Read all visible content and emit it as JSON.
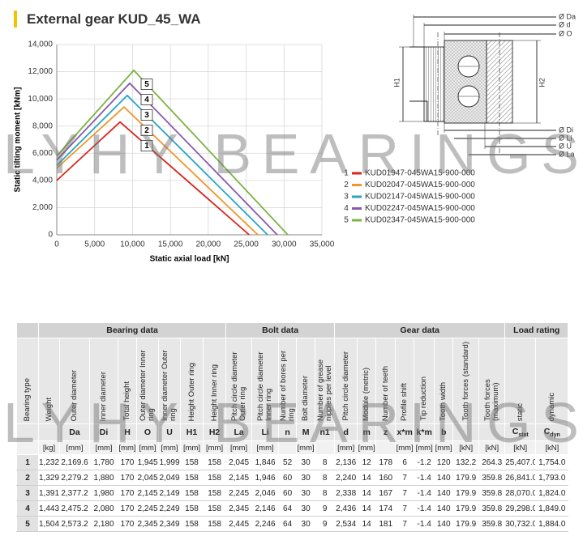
{
  "header": {
    "title": "External gear KUD_45_WA"
  },
  "watermark": "LYHY BEARINGS",
  "chart_data": {
    "type": "line",
    "xlabel": "Static axial load [kN]",
    "ylabel": "Static tilting moment [kNm]",
    "xlim": [
      0,
      35000
    ],
    "ylim": [
      0,
      14000
    ],
    "xticks": [
      0,
      {
        "value": 5000,
        "label": "5,000"
      },
      {
        "value": 10000,
        "label": "10,000"
      },
      {
        "value": 15000,
        "label": "15,000"
      },
      {
        "value": 20000,
        "label": "20,000"
      },
      {
        "value": 25000,
        "label": "25,000"
      },
      {
        "value": 30000,
        "label": "30,000"
      },
      {
        "value": 35000,
        "label": "35,000"
      }
    ],
    "yticks": [
      0,
      {
        "value": 2000,
        "label": "2,000"
      },
      {
        "value": 4000,
        "label": "4,000"
      },
      {
        "value": 6000,
        "label": "6,000"
      },
      {
        "value": 8000,
        "label": "8,000"
      },
      {
        "value": 10000,
        "label": "10,000"
      },
      {
        "value": 12000,
        "label": "12,000"
      },
      {
        "value": 14000,
        "label": "14,000"
      }
    ],
    "grid": true,
    "series": [
      {
        "number": "1",
        "name": "KUD01947-045WA15-900-000",
        "color": "#d7261e",
        "x": [
          0,
          8350,
          25400
        ],
        "values": [
          4000,
          8300,
          0
        ]
      },
      {
        "number": "2",
        "name": "KUD02047-045WA15-900-000",
        "color": "#f0962a",
        "x": [
          0,
          8880,
          26540
        ],
        "values": [
          4900,
          9400,
          0
        ]
      },
      {
        "number": "3",
        "name": "KUD02147-045WA15-900-000",
        "color": "#2aa6c0",
        "x": [
          0,
          9300,
          27830
        ],
        "values": [
          5100,
          10250,
          0
        ]
      },
      {
        "number": "4",
        "name": "KUD02247-045WA15-900-000",
        "color": "#8a5aa8",
        "x": [
          0,
          9630,
          29100
        ],
        "values": [
          5500,
          11150,
          0
        ]
      },
      {
        "number": "5",
        "name": "KUD02347-045WA15-900-000",
        "color": "#7cb342",
        "x": [
          0,
          10170,
          30500
        ],
        "values": [
          5800,
          12100,
          0
        ]
      }
    ]
  },
  "diagram": {
    "labels": [
      "Ø Da",
      "Ø d",
      "Ø O",
      "H1",
      "H2",
      "Ø Di",
      "Ø Li",
      "Ø U",
      "Ø La"
    ]
  },
  "table": {
    "groups": [
      {
        "label": null,
        "columns": [
          {
            "header": "Bearing type",
            "symbol": null,
            "unit": null
          }
        ]
      },
      {
        "label": "Bearing data",
        "columns": [
          {
            "header": "Weight",
            "symbol": null,
            "unit": "[kg]"
          },
          {
            "header": "Outer diameter",
            "symbol": "Da",
            "unit": "[mm]"
          },
          {
            "header": "Inner diameter",
            "symbol": "Di",
            "unit": "[mm]"
          },
          {
            "header": "Total height",
            "symbol": "H",
            "unit": "[mm]"
          },
          {
            "header": "Outer diameter Inner ring",
            "symbol": "O",
            "unit": "[mm]"
          },
          {
            "header": "Inner diameter Outer ring",
            "symbol": "U",
            "unit": "[mm]"
          },
          {
            "header": "Height Outer ring",
            "symbol": "H1",
            "unit": "[mm]"
          },
          {
            "header": "Height Inner ring",
            "symbol": "H2",
            "unit": "[mm]"
          }
        ]
      },
      {
        "label": "Bolt data",
        "columns": [
          {
            "header": "Pitch circle diameter Outer ring",
            "symbol": "La",
            "unit": "[mm]"
          },
          {
            "header": "Pitch circle diameter Inner ring",
            "symbol": "Li",
            "unit": "[mm]"
          },
          {
            "header": "Number of bores per ring",
            "symbol": "n",
            "unit": null
          },
          {
            "header": "Bolt diameter",
            "symbol": "M",
            "unit": "[mm]"
          },
          {
            "header": "Number of grease nipples per level",
            "symbol": "n1",
            "unit": null
          }
        ]
      },
      {
        "label": "Gear data",
        "columns": [
          {
            "header": "Pitch circle diameter",
            "symbol": "d",
            "unit": "[mm]"
          },
          {
            "header": "Module (metric)",
            "symbol": "m",
            "unit": "[mm]"
          },
          {
            "header": "Number of teeth",
            "symbol": "z",
            "unit": null
          },
          {
            "header": "Profile shift",
            "symbol": "x*m",
            "unit": "[mm]"
          },
          {
            "header": "Tip reduction",
            "symbol": "k*m",
            "unit": "[mm]"
          },
          {
            "header": "Tooth width",
            "symbol": "b",
            "unit": "[mm]"
          },
          {
            "header": "Tooth forces (standard)",
            "symbol": null,
            "unit": "[kN]"
          },
          {
            "header": "Tooth forces (maximum)",
            "symbol": null,
            "unit": "[kN]"
          }
        ]
      },
      {
        "label": "Load rating",
        "columns": [
          {
            "header": "static",
            "symbol": {
              "text": "C",
              "sub": "stat"
            },
            "unit": "[kN]"
          },
          {
            "header": "dynamic",
            "symbol": {
              "text": "C",
              "sub": "dyn"
            },
            "unit": "[kN]"
          }
        ]
      }
    ],
    "rows": [
      [
        "1",
        "1,232",
        "2,169.6",
        "1,780",
        "170",
        "1,945",
        "1,999",
        "158",
        "158",
        "2,045",
        "1,846",
        "52",
        "30",
        "8",
        "2,136",
        "12",
        "178",
        "6",
        "-1.2",
        "120",
        "132.2",
        "264.3",
        "25,407.0",
        "1,754.0"
      ],
      [
        "2",
        "1,329",
        "2,279.2",
        "1,880",
        "170",
        "2,045",
        "2,049",
        "158",
        "158",
        "2,145",
        "1,946",
        "60",
        "30",
        "8",
        "2,240",
        "14",
        "160",
        "7",
        "-1.4",
        "140",
        "179.9",
        "359.8",
        "26,841.0",
        "1,793.0"
      ],
      [
        "3",
        "1,391",
        "2,377.2",
        "1,980",
        "170",
        "2,145",
        "2,149",
        "158",
        "158",
        "2,245",
        "2,046",
        "60",
        "30",
        "8",
        "2,338",
        "14",
        "167",
        "7",
        "-1.4",
        "140",
        "179.9",
        "359.8",
        "28,070.0",
        "1,824.0"
      ],
      [
        "4",
        "1,443",
        "2,475.2",
        "2,080",
        "170",
        "2,245",
        "2,249",
        "158",
        "158",
        "2,345",
        "2,146",
        "64",
        "30",
        "9",
        "2,436",
        "14",
        "174",
        "7",
        "-1.4",
        "140",
        "179.9",
        "359.8",
        "29,298.0",
        "1,849.0"
      ],
      [
        "5",
        "1,504",
        "2,573.2",
        "2,180",
        "170",
        "2,345",
        "2,349",
        "158",
        "158",
        "2,445",
        "2,246",
        "64",
        "30",
        "9",
        "2,534",
        "14",
        "181",
        "7",
        "-1.4",
        "140",
        "179.9",
        "359.8",
        "30,732.0",
        "1,884.0"
      ]
    ]
  }
}
